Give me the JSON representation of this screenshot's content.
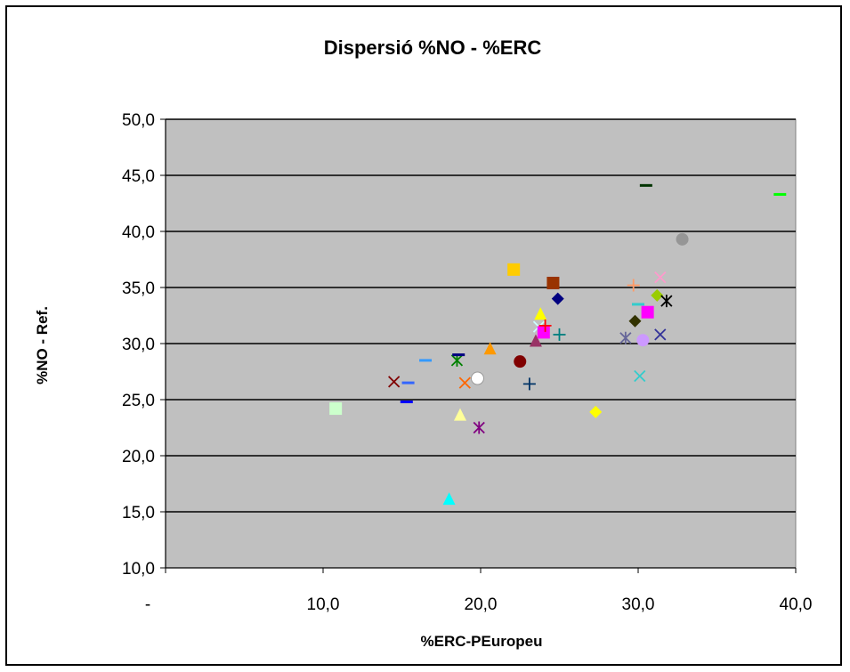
{
  "chart_data": {
    "type": "scatter",
    "title": "Dispersió %NO - %ERC",
    "xlabel": "%ERC-PEuropeu",
    "ylabel": "%NO - Ref.",
    "xlim": [
      0,
      40
    ],
    "ylim": [
      10,
      50
    ],
    "x_ticks": [
      "-",
      "10,0",
      "20,0",
      "30,0",
      "40,0"
    ],
    "y_ticks": [
      "10,0",
      "15,0",
      "20,0",
      "25,0",
      "30,0",
      "35,0",
      "40,0",
      "45,0",
      "50,0"
    ],
    "plot_background": "#c0c0c0",
    "grid": "horizontal",
    "legend": "none",
    "points": [
      {
        "x": 10.8,
        "y": 24.2,
        "marker": "square",
        "color": "#ccffcc"
      },
      {
        "x": 14.5,
        "y": 26.6,
        "marker": "x",
        "color": "#800000"
      },
      {
        "x": 15.3,
        "y": 24.8,
        "marker": "dash",
        "color": "#0000ff"
      },
      {
        "x": 15.4,
        "y": 26.5,
        "marker": "dash",
        "color": "#3366ff"
      },
      {
        "x": 16.5,
        "y": 28.5,
        "marker": "dash",
        "color": "#3399ff"
      },
      {
        "x": 18.0,
        "y": 16.1,
        "marker": "triangle",
        "color": "#00ffff"
      },
      {
        "x": 18.5,
        "y": 28.5,
        "marker": "star",
        "color": "#008000"
      },
      {
        "x": 18.6,
        "y": 29.0,
        "marker": "dash",
        "color": "#000080"
      },
      {
        "x": 18.7,
        "y": 23.6,
        "marker": "triangle",
        "color": "#ffff99"
      },
      {
        "x": 19.0,
        "y": 26.5,
        "marker": "x",
        "color": "#ff6600"
      },
      {
        "x": 19.8,
        "y": 26.9,
        "marker": "circle",
        "color": "#ffffff"
      },
      {
        "x": 19.9,
        "y": 22.5,
        "marker": "star",
        "color": "#800080"
      },
      {
        "x": 20.6,
        "y": 29.5,
        "marker": "triangle",
        "color": "#ff9900"
      },
      {
        "x": 22.1,
        "y": 36.6,
        "marker": "square",
        "color": "#ffcc00"
      },
      {
        "x": 22.5,
        "y": 28.4,
        "marker": "circle",
        "color": "#800000"
      },
      {
        "x": 23.1,
        "y": 26.4,
        "marker": "plus",
        "color": "#003366"
      },
      {
        "x": 23.5,
        "y": 30.2,
        "marker": "triangle",
        "color": "#993366"
      },
      {
        "x": 23.7,
        "y": 31.5,
        "marker": "x",
        "color": "#ccffff"
      },
      {
        "x": 23.8,
        "y": 32.6,
        "marker": "triangle",
        "color": "#ffff00"
      },
      {
        "x": 24.0,
        "y": 31.0,
        "marker": "square",
        "color": "#ff00ff"
      },
      {
        "x": 24.1,
        "y": 31.6,
        "marker": "plus",
        "color": "#ff0000"
      },
      {
        "x": 24.6,
        "y": 35.4,
        "marker": "square",
        "color": "#993300"
      },
      {
        "x": 24.9,
        "y": 34.0,
        "marker": "diamond",
        "color": "#000080"
      },
      {
        "x": 25.0,
        "y": 30.8,
        "marker": "plus",
        "color": "#008080"
      },
      {
        "x": 27.3,
        "y": 23.9,
        "marker": "diamond",
        "color": "#ffff00"
      },
      {
        "x": 29.2,
        "y": 30.5,
        "marker": "star",
        "color": "#666699"
      },
      {
        "x": 29.7,
        "y": 35.2,
        "marker": "plus",
        "color": "#ff9966"
      },
      {
        "x": 29.8,
        "y": 32.0,
        "marker": "diamond",
        "color": "#333300"
      },
      {
        "x": 30.0,
        "y": 33.5,
        "marker": "dash",
        "color": "#33cccc"
      },
      {
        "x": 30.1,
        "y": 27.1,
        "marker": "x",
        "color": "#33cccc"
      },
      {
        "x": 30.3,
        "y": 30.3,
        "marker": "circle",
        "color": "#cc99ff"
      },
      {
        "x": 30.5,
        "y": 44.1,
        "marker": "dash",
        "color": "#003300"
      },
      {
        "x": 30.6,
        "y": 32.8,
        "marker": "square",
        "color": "#ff00ff"
      },
      {
        "x": 31.2,
        "y": 34.3,
        "marker": "diamond",
        "color": "#99cc00"
      },
      {
        "x": 31.4,
        "y": 30.8,
        "marker": "x",
        "color": "#333399"
      },
      {
        "x": 31.4,
        "y": 35.9,
        "marker": "x",
        "color": "#ff99cc"
      },
      {
        "x": 31.8,
        "y": 33.8,
        "marker": "star",
        "color": "#000000"
      },
      {
        "x": 32.8,
        "y": 39.3,
        "marker": "circle",
        "color": "#969696"
      },
      {
        "x": 39.0,
        "y": 43.3,
        "marker": "dash",
        "color": "#00ff00"
      }
    ]
  }
}
